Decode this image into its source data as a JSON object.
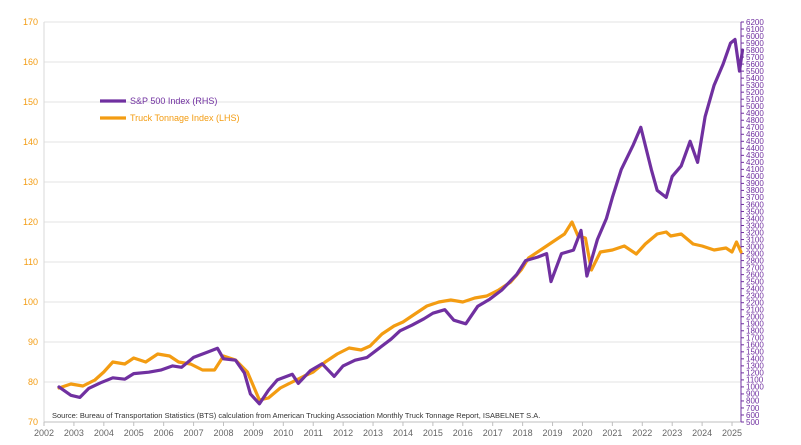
{
  "chart_data": {
    "type": "line",
    "title": "",
    "source_note": "Source: Bureau of Transportation Statistics (BTS) calculation from American Trucking Association Monthly Truck Tonnage Report, ISABELNET S.A.",
    "x_ticks": [
      "2002",
      "2003",
      "2004",
      "2005",
      "2006",
      "2007",
      "2008",
      "2009",
      "2010",
      "2011",
      "2012",
      "2013",
      "2014",
      "2015",
      "2016",
      "2017",
      "2018",
      "2019",
      "2020",
      "2021",
      "2022",
      "2023",
      "2024",
      "2025"
    ],
    "xlim": [
      2002,
      2025.3
    ],
    "left_axis": {
      "range": [
        70,
        170
      ],
      "ticks": [
        "70",
        "80",
        "90",
        "100",
        "110",
        "120",
        "130",
        "140",
        "150",
        "160",
        "170"
      ],
      "color": "#F39C12"
    },
    "right_axis": {
      "range": [
        500,
        6200
      ],
      "ticks": [
        "500",
        "600",
        "700",
        "800",
        "900",
        "1000",
        "1100",
        "1200",
        "1300",
        "1400",
        "1500",
        "1600",
        "1700",
        "1800",
        "1900",
        "2000",
        "2100",
        "2200",
        "2300",
        "2400",
        "2500",
        "2600",
        "2700",
        "2800",
        "2900",
        "3000",
        "3100",
        "3200",
        "3300",
        "3400",
        "3500",
        "3600",
        "3700",
        "3800",
        "3900",
        "4000",
        "4100",
        "4200",
        "4300",
        "4400",
        "4500",
        "4600",
        "4700",
        "4800",
        "4900",
        "5000",
        "5100",
        "5200",
        "5300",
        "5400",
        "5500",
        "5600",
        "5700",
        "5800",
        "5900",
        "6000",
        "6100",
        "6200"
      ],
      "color": "#7030A0"
    },
    "grid": true,
    "legend_position": "top-left",
    "series": [
      {
        "name": "S&P 500 Index (RHS)",
        "axis": "right",
        "color": "#7030A0",
        "points": [
          [
            2002.5,
            1000
          ],
          [
            2002.9,
            880
          ],
          [
            2003.2,
            850
          ],
          [
            2003.5,
            980
          ],
          [
            2003.9,
            1060
          ],
          [
            2004.3,
            1130
          ],
          [
            2004.7,
            1110
          ],
          [
            2005.0,
            1190
          ],
          [
            2005.5,
            1210
          ],
          [
            2005.9,
            1240
          ],
          [
            2006.3,
            1300
          ],
          [
            2006.6,
            1280
          ],
          [
            2007.0,
            1420
          ],
          [
            2007.5,
            1500
          ],
          [
            2007.8,
            1550
          ],
          [
            2008.0,
            1400
          ],
          [
            2008.4,
            1380
          ],
          [
            2008.7,
            1200
          ],
          [
            2008.9,
            900
          ],
          [
            2009.2,
            760
          ],
          [
            2009.5,
            950
          ],
          [
            2009.8,
            1100
          ],
          [
            2010.3,
            1180
          ],
          [
            2010.5,
            1050
          ],
          [
            2010.9,
            1230
          ],
          [
            2011.3,
            1330
          ],
          [
            2011.7,
            1150
          ],
          [
            2012.0,
            1300
          ],
          [
            2012.4,
            1380
          ],
          [
            2012.8,
            1420
          ],
          [
            2013.2,
            1550
          ],
          [
            2013.6,
            1680
          ],
          [
            2013.9,
            1800
          ],
          [
            2014.3,
            1880
          ],
          [
            2014.7,
            1970
          ],
          [
            2015.0,
            2050
          ],
          [
            2015.4,
            2100
          ],
          [
            2015.7,
            1950
          ],
          [
            2016.1,
            1900
          ],
          [
            2016.5,
            2150
          ],
          [
            2016.9,
            2250
          ],
          [
            2017.3,
            2380
          ],
          [
            2017.8,
            2600
          ],
          [
            2018.1,
            2800
          ],
          [
            2018.5,
            2850
          ],
          [
            2018.8,
            2900
          ],
          [
            2018.95,
            2500
          ],
          [
            2019.3,
            2900
          ],
          [
            2019.7,
            2950
          ],
          [
            2019.95,
            3230
          ],
          [
            2020.15,
            2580
          ],
          [
            2020.5,
            3100
          ],
          [
            2020.8,
            3400
          ],
          [
            2021.0,
            3700
          ],
          [
            2021.3,
            4100
          ],
          [
            2021.7,
            4450
          ],
          [
            2021.95,
            4700
          ],
          [
            2022.3,
            4100
          ],
          [
            2022.5,
            3800
          ],
          [
            2022.8,
            3700
          ],
          [
            2023.0,
            4000
          ],
          [
            2023.3,
            4150
          ],
          [
            2023.6,
            4500
          ],
          [
            2023.85,
            4200
          ],
          [
            2024.1,
            4850
          ],
          [
            2024.4,
            5300
          ],
          [
            2024.7,
            5600
          ],
          [
            2024.95,
            5900
          ],
          [
            2025.1,
            5950
          ],
          [
            2025.25,
            5500
          ],
          [
            2025.35,
            5800
          ]
        ]
      },
      {
        "name": "Truck Tonnage Index (LHS)",
        "axis": "left",
        "color": "#F39C12",
        "points": [
          [
            2002.5,
            78.5
          ],
          [
            2002.9,
            79.5
          ],
          [
            2003.3,
            79.0
          ],
          [
            2003.7,
            80.5
          ],
          [
            2004.0,
            82.5
          ],
          [
            2004.3,
            85.0
          ],
          [
            2004.7,
            84.5
          ],
          [
            2005.0,
            86.0
          ],
          [
            2005.4,
            85.0
          ],
          [
            2005.8,
            87.0
          ],
          [
            2006.2,
            86.5
          ],
          [
            2006.5,
            85.0
          ],
          [
            2006.9,
            84.5
          ],
          [
            2007.3,
            83.0
          ],
          [
            2007.7,
            83.0
          ],
          [
            2008.0,
            86.5
          ],
          [
            2008.4,
            85.5
          ],
          [
            2008.8,
            82.5
          ],
          [
            2009.2,
            75.5
          ],
          [
            2009.5,
            76.0
          ],
          [
            2009.9,
            78.5
          ],
          [
            2010.3,
            80.0
          ],
          [
            2010.7,
            81.5
          ],
          [
            2011.0,
            82.5
          ],
          [
            2011.4,
            85.0
          ],
          [
            2011.8,
            87.0
          ],
          [
            2012.2,
            88.5
          ],
          [
            2012.6,
            88.0
          ],
          [
            2012.9,
            89.0
          ],
          [
            2013.3,
            92.0
          ],
          [
            2013.7,
            94.0
          ],
          [
            2014.0,
            95.0
          ],
          [
            2014.4,
            97.0
          ],
          [
            2014.8,
            99.0
          ],
          [
            2015.2,
            100.0
          ],
          [
            2015.6,
            100.5
          ],
          [
            2016.0,
            100.0
          ],
          [
            2016.4,
            101.0
          ],
          [
            2016.8,
            101.5
          ],
          [
            2017.2,
            103.0
          ],
          [
            2017.6,
            105.0
          ],
          [
            2017.95,
            108.0
          ],
          [
            2018.2,
            111.0
          ],
          [
            2018.6,
            113.0
          ],
          [
            2019.0,
            115.0
          ],
          [
            2019.4,
            117.0
          ],
          [
            2019.65,
            120.0
          ],
          [
            2019.85,
            116.5
          ],
          [
            2020.1,
            116.0
          ],
          [
            2020.3,
            108.0
          ],
          [
            2020.6,
            112.5
          ],
          [
            2021.0,
            113.0
          ],
          [
            2021.4,
            114.0
          ],
          [
            2021.8,
            112.0
          ],
          [
            2022.1,
            114.5
          ],
          [
            2022.5,
            117.0
          ],
          [
            2022.8,
            117.5
          ],
          [
            2022.95,
            116.5
          ],
          [
            2023.3,
            117.0
          ],
          [
            2023.7,
            114.5
          ],
          [
            2024.0,
            114.0
          ],
          [
            2024.4,
            113.0
          ],
          [
            2024.8,
            113.5
          ],
          [
            2025.0,
            112.5
          ],
          [
            2025.15,
            115.0
          ],
          [
            2025.3,
            112.5
          ]
        ]
      }
    ]
  }
}
